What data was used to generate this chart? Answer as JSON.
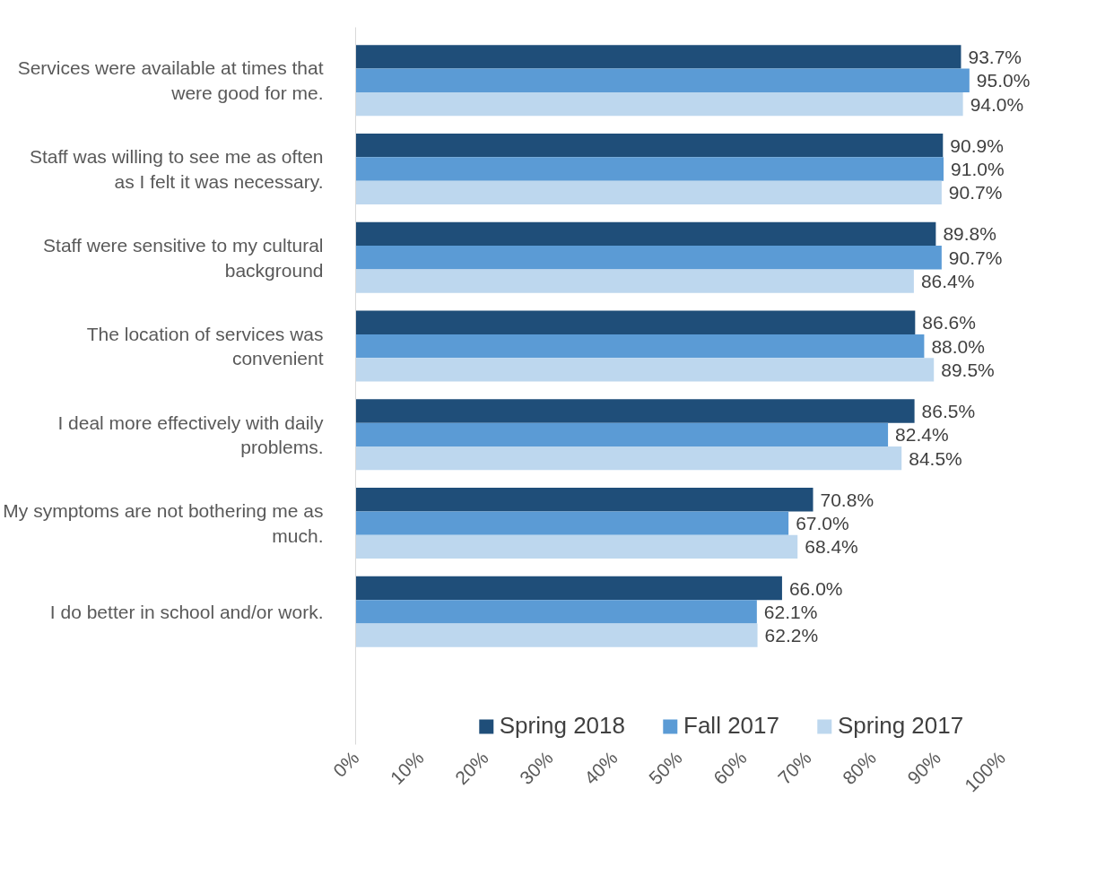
{
  "chart_data": {
    "type": "bar",
    "orientation": "horizontal",
    "categories": [
      "Services were available at times that were good for me.",
      "Staff was willing to see me as often as I felt it was necessary.",
      "Staff were sensitive to my cultural background",
      "The location of services was convenient",
      "I deal more effectively with daily problems.",
      "My symptoms are not bothering me as much.",
      "I do better in school and/or work."
    ],
    "series": [
      {
        "name": "Spring 2018",
        "color": "#1f4e79",
        "values": [
          93.7,
          90.9,
          89.8,
          86.6,
          86.5,
          70.8,
          66.0
        ],
        "value_labels": [
          "93.7%",
          "90.9%",
          "89.8%",
          "86.6%",
          "86.5%",
          "70.8%",
          "66.0%"
        ]
      },
      {
        "name": "Fall 2017",
        "color": "#5b9bd5",
        "values": [
          95.0,
          91.0,
          90.7,
          88.0,
          82.4,
          67.0,
          62.1
        ],
        "value_labels": [
          "95.0%",
          "91.0%",
          "90.7%",
          "88.0%",
          "82.4%",
          "67.0%",
          "62.1%"
        ]
      },
      {
        "name": "Spring 2017",
        "color": "#bdd7ee",
        "values": [
          94.0,
          90.7,
          86.4,
          89.5,
          84.5,
          68.4,
          62.2
        ],
        "value_labels": [
          "94.0%",
          "90.7%",
          "86.4%",
          "89.5%",
          "84.5%",
          "68.4%",
          "62.2%"
        ]
      }
    ],
    "xlim": [
      0,
      100
    ],
    "xticks": [
      {
        "value": 0,
        "label": "0%"
      },
      {
        "value": 10,
        "label": "10%"
      },
      {
        "value": 20,
        "label": "20%"
      },
      {
        "value": 30,
        "label": "30%"
      },
      {
        "value": 40,
        "label": "40%"
      },
      {
        "value": 50,
        "label": "50%"
      },
      {
        "value": 60,
        "label": "60%"
      },
      {
        "value": 70,
        "label": "70%"
      },
      {
        "value": 80,
        "label": "80%"
      },
      {
        "value": 90,
        "label": "90%"
      },
      {
        "value": 100,
        "label": "100%"
      }
    ],
    "grid": false,
    "legend": "bottom"
  }
}
